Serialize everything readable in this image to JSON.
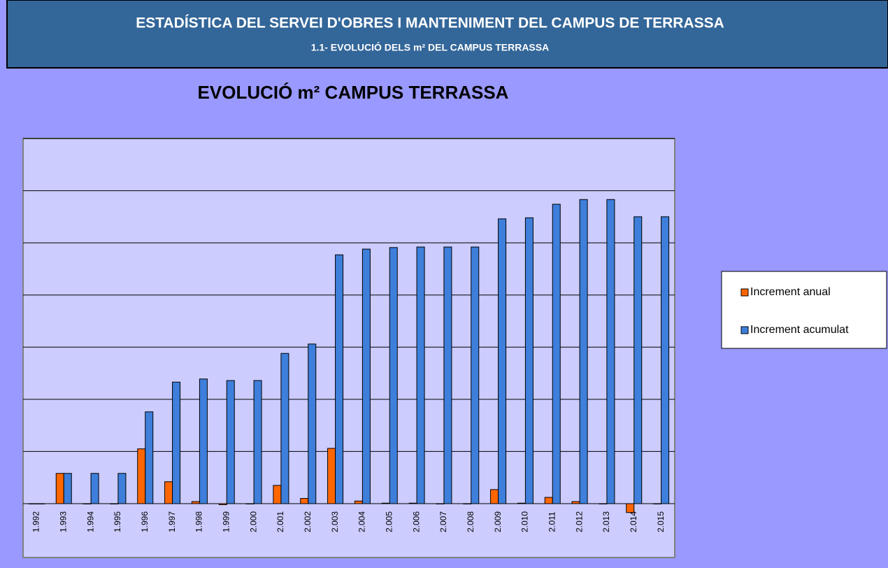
{
  "header": {
    "title": "ESTADÍSTICA DEL SERVEI D'OBRES I MANTENIMENT DEL CAMPUS DE TERRASSA",
    "subtitle": "1.1- EVOLUCIÓ DELS m² DEL CAMPUS TERRASSA"
  },
  "chart_data": {
    "type": "bar",
    "title": "EVOLUCIÓ m² CAMPUS TERRASSA",
    "categories": [
      "1.992",
      "1.993",
      "1.994",
      "1.995",
      "1.996",
      "1.997",
      "1.998",
      "1.999",
      "2.000",
      "2.001",
      "2.002",
      "2.003",
      "2.004",
      "2.005",
      "2.006",
      "2.007",
      "2.008",
      "2.009",
      "2.010",
      "2.011",
      "2.012",
      "2.013",
      "2.014",
      "2.015"
    ],
    "series": [
      {
        "name": "Increment anual",
        "color": "#ff6600",
        "values": [
          0,
          0.58,
          0,
          0,
          1.05,
          0.42,
          0.04,
          -0.02,
          0,
          0.35,
          0.1,
          1.06,
          0.05,
          0.01,
          0.01,
          0,
          0,
          0.27,
          0.01,
          0.12,
          0.04,
          0,
          -0.17,
          0
        ]
      },
      {
        "name": "Increment acumulat",
        "color": "#3d7fdb",
        "values": [
          0,
          0.58,
          0.58,
          0.58,
          1.76,
          2.33,
          2.39,
          2.36,
          2.36,
          2.88,
          3.06,
          4.77,
          4.88,
          4.91,
          4.92,
          4.92,
          4.92,
          5.46,
          5.48,
          5.74,
          5.83,
          5.83,
          5.5,
          5.5
        ]
      }
    ],
    "ylim": [
      0,
      7
    ],
    "yticks": [
      0,
      1,
      2,
      3,
      4,
      5,
      6,
      7
    ],
    "grid": true,
    "legend": "right"
  }
}
